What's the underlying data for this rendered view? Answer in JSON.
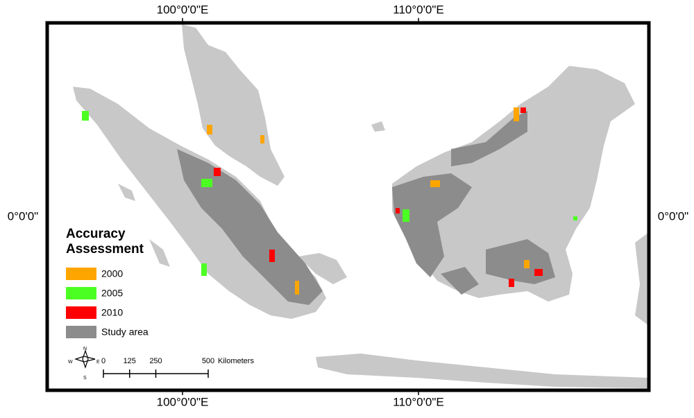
{
  "graticule": {
    "top": [
      "100°0'0\"E",
      "110°0'0\"E"
    ],
    "bottom": [
      "100°0'0\"E",
      "110°0'0\"E"
    ],
    "left": [
      "0°0'0\""
    ],
    "right": [
      "0°0'0\""
    ]
  },
  "legend": {
    "title": [
      "Accuracy",
      "Assessment"
    ],
    "items": [
      {
        "label": "2000",
        "color": "#ffa500"
      },
      {
        "label": "2005",
        "color": "#4cff22"
      },
      {
        "label": "2010",
        "color": "#ff0000"
      },
      {
        "label": "Study area",
        "color": "#8c8c8c"
      }
    ]
  },
  "north_arrow": {
    "n": "N",
    "s": "S",
    "w": "W",
    "e": "E"
  },
  "scale_bar": {
    "ticks": [
      0,
      125,
      250,
      500
    ],
    "unit": "Kilometers"
  }
}
